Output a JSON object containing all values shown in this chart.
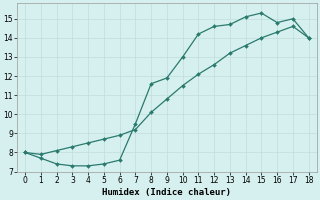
{
  "xlabel": "Humidex (Indice chaleur)",
  "line1_x": [
    0,
    1,
    2,
    3,
    4,
    5,
    6,
    7,
    8,
    9,
    10,
    11,
    12,
    13,
    14,
    15,
    16,
    17,
    18
  ],
  "line1_y": [
    8.0,
    7.7,
    7.4,
    7.3,
    7.3,
    7.4,
    7.6,
    9.5,
    11.6,
    11.9,
    13.0,
    14.2,
    14.6,
    14.7,
    15.1,
    15.3,
    14.8,
    15.0,
    14.0
  ],
  "line2_x": [
    0,
    1,
    2,
    3,
    4,
    5,
    6,
    7,
    8,
    9,
    10,
    11,
    12,
    13,
    14,
    15,
    16,
    17,
    18
  ],
  "line2_y": [
    8.0,
    7.9,
    8.1,
    8.3,
    8.5,
    8.7,
    8.9,
    9.2,
    10.1,
    10.8,
    11.5,
    12.1,
    12.6,
    13.2,
    13.6,
    14.0,
    14.3,
    14.6,
    14.0
  ],
  "xlim": [
    -0.5,
    18.5
  ],
  "ylim": [
    7.0,
    15.8
  ],
  "yticks": [
    7,
    8,
    9,
    10,
    11,
    12,
    13,
    14,
    15
  ],
  "xticks": [
    0,
    1,
    2,
    3,
    4,
    5,
    6,
    7,
    8,
    9,
    10,
    11,
    12,
    13,
    14,
    15,
    16,
    17,
    18
  ],
  "line_color": "#2a7a6e",
  "bg_color": "#d6f0ef",
  "grid_color": "#c0dedd",
  "marker": "D",
  "marker_size": 2.0,
  "linewidth": 0.9,
  "xlabel_fontsize": 6.5,
  "tick_fontsize": 5.5
}
